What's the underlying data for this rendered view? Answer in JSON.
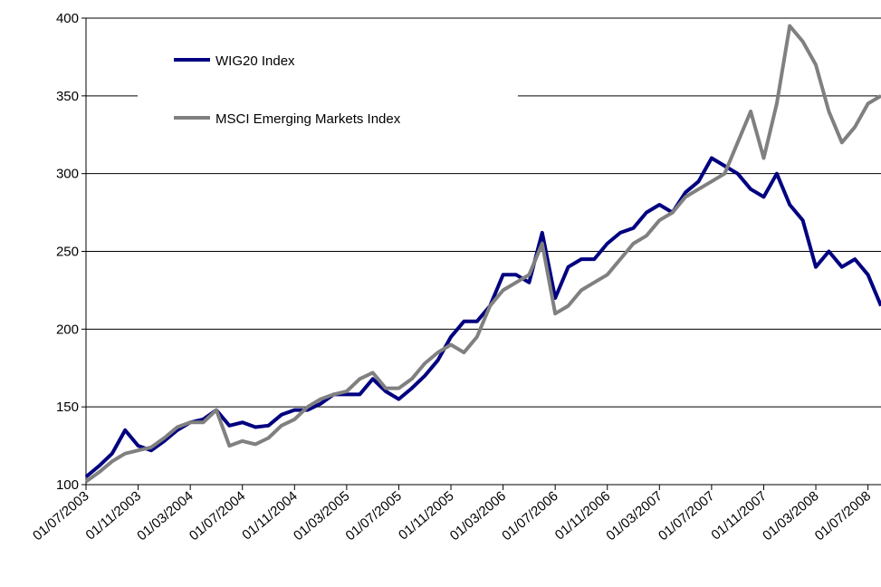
{
  "chart_data": {
    "type": "line",
    "x": [
      "01/07/2003",
      "01/08/2003",
      "01/09/2003",
      "01/10/2003",
      "01/11/2003",
      "01/12/2003",
      "01/01/2004",
      "01/02/2004",
      "01/03/2004",
      "01/04/2004",
      "01/05/2004",
      "01/06/2004",
      "01/07/2004",
      "01/08/2004",
      "01/09/2004",
      "01/10/2004",
      "01/11/2004",
      "01/12/2004",
      "01/01/2005",
      "01/02/2005",
      "01/03/2005",
      "01/04/2005",
      "01/05/2005",
      "01/06/2005",
      "01/07/2005",
      "01/08/2005",
      "01/09/2005",
      "01/10/2005",
      "01/11/2005",
      "01/12/2005",
      "01/01/2006",
      "01/02/2006",
      "01/03/2006",
      "01/04/2006",
      "01/05/2006",
      "01/06/2006",
      "01/07/2006",
      "01/08/2006",
      "01/09/2006",
      "01/10/2006",
      "01/11/2006",
      "01/12/2006",
      "01/01/2007",
      "01/02/2007",
      "01/03/2007",
      "01/04/2007",
      "01/05/2007",
      "01/06/2007",
      "01/07/2007",
      "01/08/2007",
      "01/09/2007",
      "01/10/2007",
      "01/11/2007",
      "01/12/2007",
      "01/01/2008",
      "01/02/2008",
      "01/03/2008",
      "01/04/2008",
      "01/05/2008",
      "01/06/2008",
      "01/07/2008",
      "01/08/2008"
    ],
    "series": [
      {
        "name": "WIG20 Index",
        "color": "#000080",
        "values": [
          105,
          112,
          120,
          135,
          125,
          122,
          128,
          135,
          140,
          142,
          148,
          138,
          140,
          137,
          138,
          145,
          148,
          148,
          152,
          158,
          158,
          158,
          168,
          160,
          155,
          162,
          170,
          180,
          195,
          205,
          205,
          215,
          235,
          235,
          230,
          262,
          220,
          240,
          245,
          245,
          255,
          262,
          265,
          275,
          280,
          275,
          288,
          295,
          310,
          305,
          300,
          290,
          285,
          300,
          280,
          270,
          240,
          250,
          240,
          245,
          235,
          215
        ]
      },
      {
        "name": "MSCI Emerging Markets Index",
        "color": "#808080",
        "values": [
          102,
          108,
          115,
          120,
          122,
          124,
          130,
          137,
          140,
          140,
          148,
          125,
          128,
          126,
          130,
          138,
          142,
          150,
          155,
          158,
          160,
          168,
          172,
          162,
          162,
          168,
          178,
          185,
          190,
          185,
          195,
          215,
          225,
          230,
          235,
          255,
          210,
          215,
          225,
          230,
          235,
          245,
          255,
          260,
          270,
          275,
          285,
          290,
          295,
          300,
          320,
          340,
          310,
          345,
          395,
          385,
          370,
          340,
          320,
          330,
          345,
          350
        ]
      }
    ],
    "xlim": [
      "01/07/2003",
      "01/08/2008"
    ],
    "xticks": [
      "01/07/2003",
      "01/11/2003",
      "01/03/2004",
      "01/07/2004",
      "01/11/2004",
      "01/03/2005",
      "01/07/2005",
      "01/11/2005",
      "01/03/2006",
      "01/07/2006",
      "01/11/2006",
      "01/03/2007",
      "01/07/2007",
      "01/11/2007",
      "01/03/2008",
      "01/07/2008"
    ],
    "ylim": [
      100,
      400
    ],
    "yticks": [
      100,
      150,
      200,
      250,
      300,
      350,
      400
    ],
    "grid": true
  }
}
